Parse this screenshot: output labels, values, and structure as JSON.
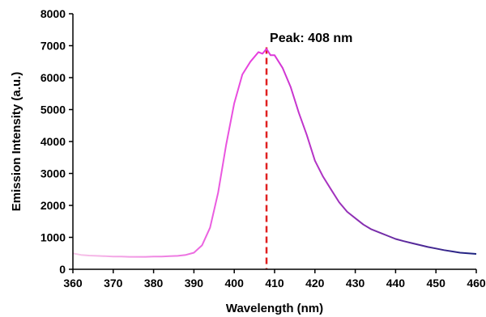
{
  "chart_data": {
    "type": "line",
    "title": "",
    "xlabel": "Wavelength (nm)",
    "ylabel": "Emission Intensity (a.u.)",
    "xlim": [
      360,
      460
    ],
    "ylim": [
      0,
      8000
    ],
    "x_ticks": [
      360,
      370,
      380,
      390,
      400,
      410,
      420,
      430,
      440,
      450,
      460
    ],
    "y_ticks": [
      0,
      1000,
      2000,
      3000,
      4000,
      5000,
      6000,
      7000,
      8000
    ],
    "grid": false,
    "legend": "none",
    "annotation": {
      "text": "Peak: 408 nm",
      "x": 408
    },
    "series": [
      {
        "x": [
          360,
          362,
          364,
          366,
          368,
          370,
          372,
          374,
          376,
          378,
          380,
          382,
          384,
          386,
          388,
          390,
          392,
          394,
          396,
          398,
          400,
          402,
          404,
          406,
          407,
          408,
          409,
          410,
          412,
          414,
          416,
          418,
          420,
          422,
          424,
          426,
          428,
          430,
          432,
          434,
          436,
          438,
          440,
          442,
          444,
          446,
          448,
          450,
          452,
          454,
          456,
          458,
          460
        ],
        "values": [
          500,
          450,
          430,
          420,
          410,
          400,
          400,
          390,
          390,
          390,
          400,
          400,
          410,
          420,
          450,
          520,
          750,
          1300,
          2400,
          3900,
          5200,
          6100,
          6500,
          6800,
          6750,
          6900,
          6700,
          6700,
          6300,
          5700,
          4900,
          4200,
          3400,
          2900,
          2500,
          2100,
          1800,
          1600,
          1400,
          1250,
          1150,
          1050,
          950,
          880,
          820,
          760,
          700,
          650,
          600,
          560,
          520,
          500,
          480
        ]
      }
    ],
    "colors": {
      "line_start": "#f7c6e8",
      "line_peak": "#e639dd",
      "line_end": "#1a237e",
      "peak_marker": "#e02020"
    }
  }
}
